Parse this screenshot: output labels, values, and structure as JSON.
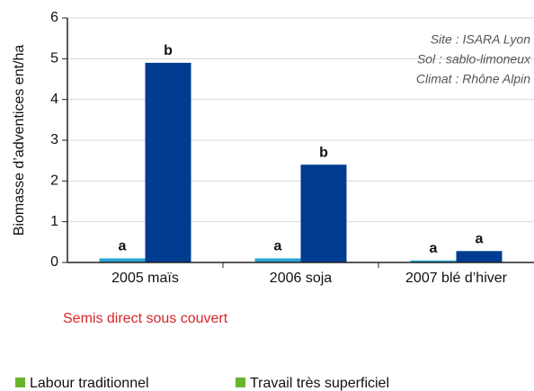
{
  "chart_data": {
    "type": "bar",
    "y_label": "Biomasse d’adventices ent/ha",
    "categories": [
      "2005 maïs",
      "2006 soja",
      "2007 blé d’hiver"
    ],
    "series": [
      {
        "name": "Labour traditionnel",
        "color": "#2ba3d5",
        "legend_color": "#6ab42a",
        "values": [
          0.1,
          0.1,
          0.05
        ],
        "letters": [
          "a",
          "a",
          "a"
        ]
      },
      {
        "name": "Semis direct sous couvert",
        "color": "#003c8f",
        "legend_color": "#d6262b",
        "values": [
          4.9,
          2.4,
          0.28
        ],
        "letters": [
          "b",
          "b",
          "a"
        ]
      }
    ],
    "extra_legend": {
      "name": "Travail très superficiel",
      "color": "#6ab42a"
    },
    "annotations": [
      "Site : ISARA Lyon",
      "Sol : sablo-limoneux",
      "Climat : Rhône Alpin"
    ],
    "ylim": [
      0,
      6
    ],
    "yticks": [
      0,
      1,
      2,
      3,
      4,
      5,
      6
    ],
    "grid": true
  }
}
